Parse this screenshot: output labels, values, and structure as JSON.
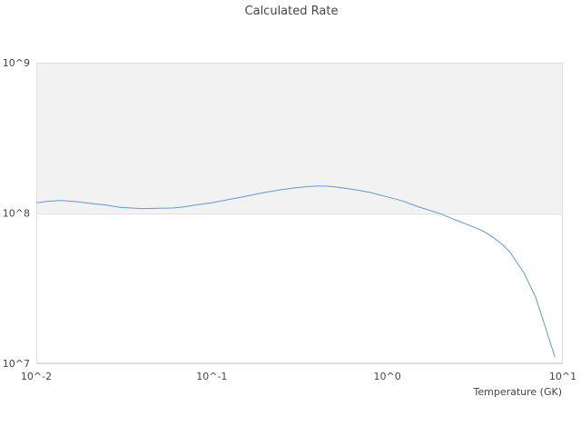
{
  "chart_data": {
    "type": "line",
    "title": "Calculated Rate",
    "xlabel": "Temperature (GK)",
    "ylabel": "",
    "x_scale": "log",
    "y_scale": "log",
    "xlim": [
      0.01,
      10
    ],
    "ylim": [
      10000000,
      1000000000
    ],
    "x_ticks": [
      {
        "value": 0.01,
        "label": "10^-2"
      },
      {
        "value": 0.1,
        "label": "10^-1"
      },
      {
        "value": 1,
        "label": "10^0"
      },
      {
        "value": 10,
        "label": "10^1"
      }
    ],
    "y_ticks": [
      {
        "value": 10000000,
        "label": "10^7"
      },
      {
        "value": 100000000,
        "label": "10^8"
      },
      {
        "value": 1000000000,
        "label": "10^9"
      }
    ],
    "band_colors": [
      "#f2f2f2",
      "#ffffff"
    ],
    "grid": false,
    "series": [
      {
        "color": "#5b9bd5",
        "x": [
          0.01,
          0.012,
          0.014,
          0.017,
          0.02,
          0.025,
          0.03,
          0.035,
          0.04,
          0.05,
          0.06,
          0.07,
          0.08,
          0.1,
          0.12,
          0.15,
          0.2,
          0.25,
          0.3,
          0.35,
          0.4,
          0.45,
          0.5,
          0.6,
          0.7,
          0.8,
          1.0,
          1.2,
          1.5,
          2.0,
          2.5,
          3.0,
          3.5,
          4.0,
          4.5,
          5.0,
          6.0,
          7.0,
          8.0,
          9.0
        ],
        "y": [
          117000000,
          120000000,
          121000000,
          119000000,
          116000000,
          113000000,
          109000000,
          108000000,
          107000000,
          107500000,
          108000000,
          110000000,
          113000000,
          117000000,
          122000000,
          128000000,
          137000000,
          143000000,
          147000000,
          150000000,
          151000000,
          151000000,
          149000000,
          145000000,
          141000000,
          137000000,
          128000000,
          121000000,
          110000000,
          99000000,
          89000000,
          82000000,
          76000000,
          69000000,
          62000000,
          55000000,
          40000000,
          27500000,
          17000000,
          11000000
        ]
      }
    ]
  }
}
